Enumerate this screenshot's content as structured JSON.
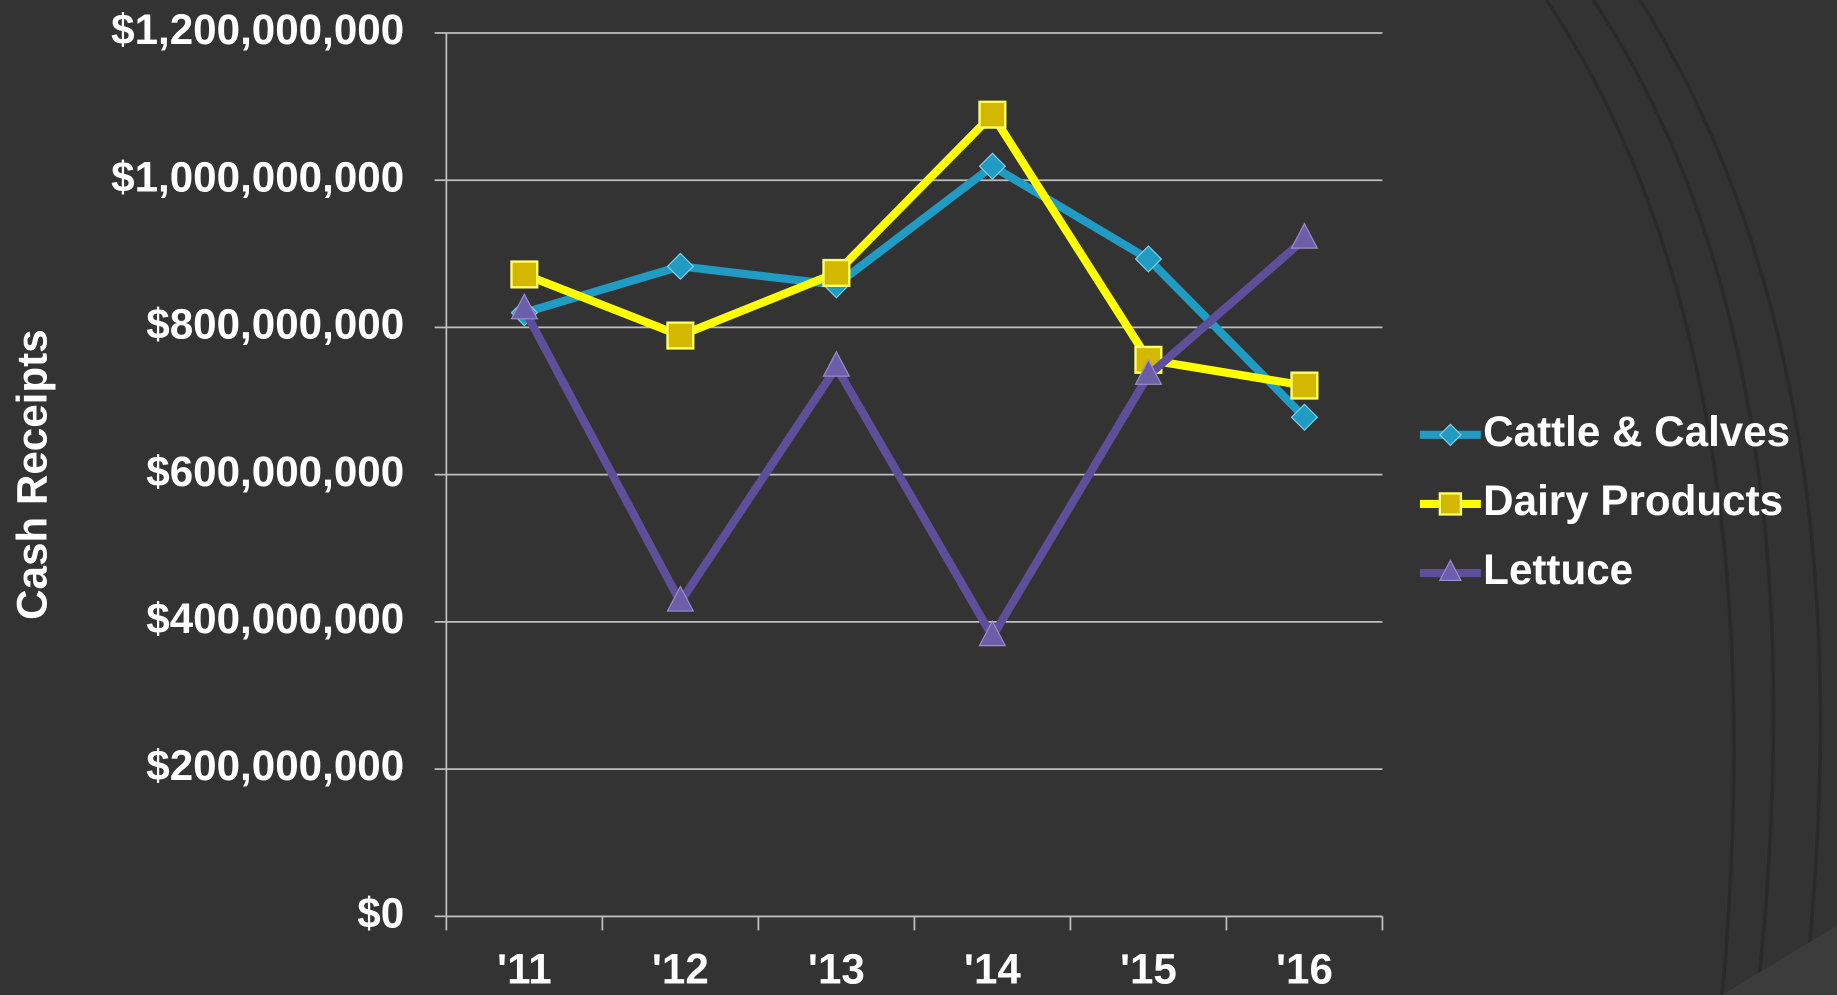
{
  "chart_data": {
    "type": "line",
    "y_label": "Cash Receipts",
    "categories": [
      "'11",
      "'12",
      "'13",
      "'14",
      "'15",
      "'16"
    ],
    "series": [
      {
        "name": "Cattle & Calves",
        "color": "#1f9bc4",
        "marker": "diamond",
        "values": [
          820000000,
          883000000,
          858000000,
          1019000000,
          893000000,
          678000000
        ]
      },
      {
        "name": "Dairy Products",
        "color": "#ffff00",
        "marker": "square",
        "values": [
          872000000,
          789000000,
          874000000,
          1089000000,
          756000000,
          721000000
        ]
      },
      {
        "name": "Lettuce",
        "color": "#5e4f9a",
        "marker": "triangle",
        "values": [
          824000000,
          427000000,
          746000000,
          380000000,
          735000000,
          920000000
        ]
      }
    ],
    "ylim": [
      0,
      1200000000
    ],
    "yticks": [
      {
        "value": 0,
        "label": "$0"
      },
      {
        "value": 200000000,
        "label": "$200,000,000"
      },
      {
        "value": 400000000,
        "label": "$400,000,000"
      },
      {
        "value": 600000000,
        "label": "$600,000,000"
      },
      {
        "value": 800000000,
        "label": "$800,000,000"
      },
      {
        "value": 1000000000,
        "label": "$1,000,000,000"
      },
      {
        "value": 1200000000,
        "label": "$1,200,000,000"
      }
    ],
    "grid": true,
    "legend": "right"
  }
}
